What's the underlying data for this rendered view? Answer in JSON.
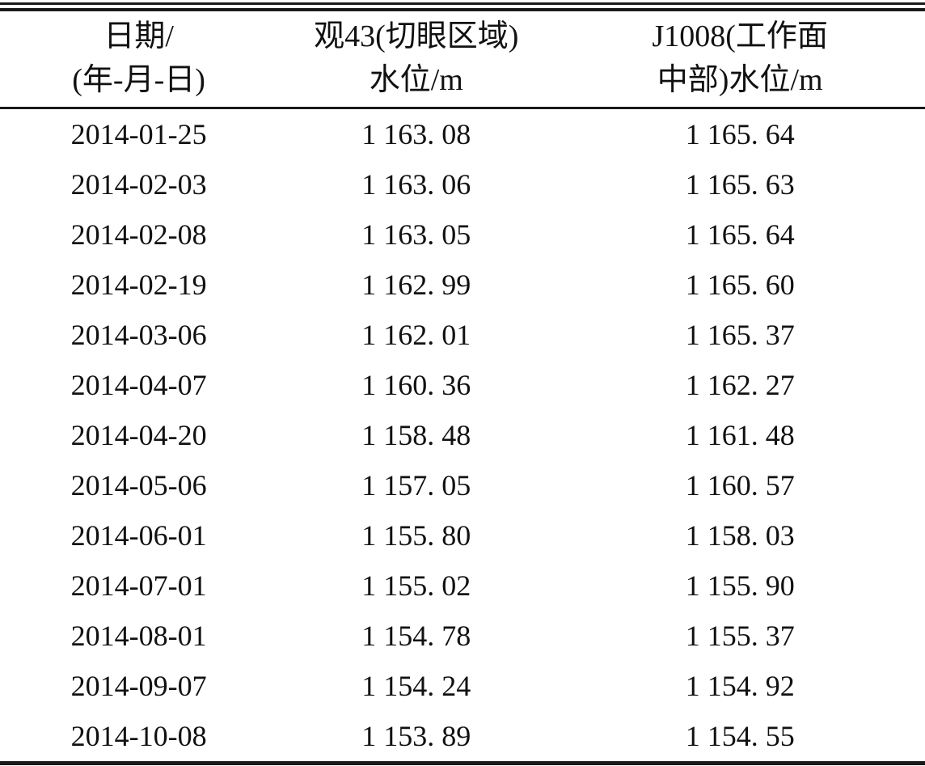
{
  "table": {
    "header": {
      "date": {
        "line1": "日期/",
        "line2": "(年-月-日)"
      },
      "guan43": {
        "line1": "观43(切眼区域)",
        "line2": "水位/m"
      },
      "j1008": {
        "line1": "J1008(工作面",
        "line2": "中部)水位/m"
      }
    },
    "rows": [
      {
        "date": "2014-01-25",
        "guan43": "1 163. 08",
        "j1008": "1 165. 64"
      },
      {
        "date": "2014-02-03",
        "guan43": "1 163. 06",
        "j1008": "1 165. 63"
      },
      {
        "date": "2014-02-08",
        "guan43": "1 163. 05",
        "j1008": "1 165. 64"
      },
      {
        "date": "2014-02-19",
        "guan43": "1 162. 99",
        "j1008": "1 165. 60"
      },
      {
        "date": "2014-03-06",
        "guan43": "1 162. 01",
        "j1008": "1 165. 37"
      },
      {
        "date": "2014-04-07",
        "guan43": "1 160. 36",
        "j1008": "1 162. 27"
      },
      {
        "date": "2014-04-20",
        "guan43": "1 158. 48",
        "j1008": "1 161. 48"
      },
      {
        "date": "2014-05-06",
        "guan43": "1 157. 05",
        "j1008": "1 160. 57"
      },
      {
        "date": "2014-06-01",
        "guan43": "1 155. 80",
        "j1008": "1 158. 03"
      },
      {
        "date": "2014-07-01",
        "guan43": "1 155. 02",
        "j1008": "1 155. 90"
      },
      {
        "date": "2014-08-01",
        "guan43": "1 154. 78",
        "j1008": "1 155. 37"
      },
      {
        "date": "2014-09-07",
        "guan43": "1 154. 24",
        "j1008": "1 154. 92"
      },
      {
        "date": "2014-10-08",
        "guan43": "1 153. 89",
        "j1008": "1 154. 55"
      }
    ]
  },
  "chart_data": {
    "type": "table",
    "columns": [
      "日期/(年-月-日)",
      "观43(切眼区域)水位/m",
      "J1008(工作面中部)水位/m"
    ],
    "rows": [
      [
        "2014-01-25",
        1163.08,
        1165.64
      ],
      [
        "2014-02-03",
        1163.06,
        1165.63
      ],
      [
        "2014-02-08",
        1163.05,
        1165.64
      ],
      [
        "2014-02-19",
        1162.99,
        1165.6
      ],
      [
        "2014-03-06",
        1162.01,
        1165.37
      ],
      [
        "2014-04-07",
        1160.36,
        1162.27
      ],
      [
        "2014-04-20",
        1158.48,
        1161.48
      ],
      [
        "2014-05-06",
        1157.05,
        1160.57
      ],
      [
        "2014-06-01",
        1155.8,
        1158.03
      ],
      [
        "2014-07-01",
        1155.02,
        1155.9
      ],
      [
        "2014-08-01",
        1154.78,
        1155.37
      ],
      [
        "2014-09-07",
        1154.24,
        1154.92
      ],
      [
        "2014-10-08",
        1153.89,
        1154.55
      ]
    ]
  },
  "colors": {
    "text": "#111111",
    "rule": "#1a1a1a",
    "background": "#ffffff"
  }
}
